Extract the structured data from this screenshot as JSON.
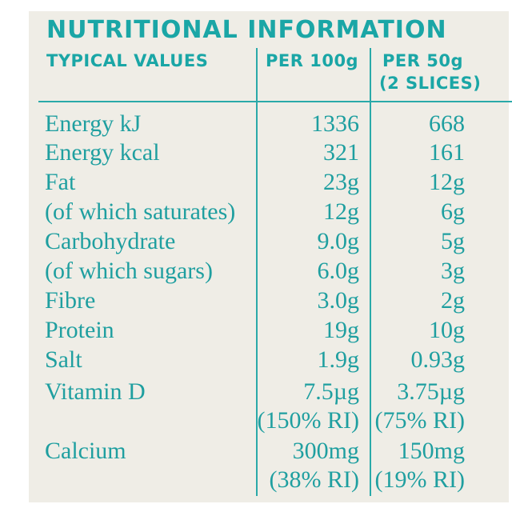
{
  "title": "NUTRITIONAL INFORMATION",
  "headers": {
    "col0": "TYPICAL VALUES",
    "col1": "PER 100g",
    "col2_line1": "PER 50g",
    "col2_line2": "(2 SLICES)"
  },
  "rows": [
    {
      "label": "Energy kJ",
      "per100": "1336",
      "per50": "668"
    },
    {
      "label": "Energy kcal",
      "per100": "321",
      "per50": "161"
    },
    {
      "label": "Fat",
      "per100": "23g",
      "per50": "12g"
    },
    {
      "label": "(of which saturates)",
      "per100": "12g",
      "per50": "6g"
    },
    {
      "label": "Carbohydrate",
      "per100": "9.0g",
      "per50": "5g"
    },
    {
      "label": "(of which sugars)",
      "per100": "6.0g",
      "per50": "3g"
    },
    {
      "label": "Fibre",
      "per100": "3.0g",
      "per50": "2g"
    },
    {
      "label": "Protein",
      "per100": "19g",
      "per50": "10g"
    },
    {
      "label": "Salt",
      "per100": "1.9g",
      "per50": "0.93g"
    },
    {
      "label": "Vitamin D",
      "per100": "7.5µg",
      "per50": "3.75µg",
      "per100_ri": "(150% RI)",
      "per50_ri": "(75% RI)"
    },
    {
      "label": "Calcium",
      "per100": "300mg",
      "per50": "150mg",
      "per100_ri": "(38% RI)",
      "per50_ri": "(19% RI)"
    }
  ],
  "colors": {
    "teal": "#1aa6a6",
    "background": "#efede6"
  }
}
